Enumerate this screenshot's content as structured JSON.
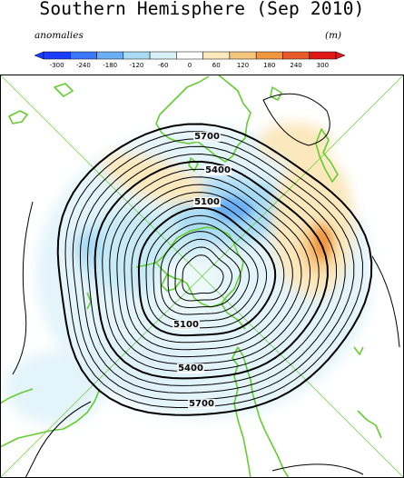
{
  "title": "Southern Hemisphere (Sep 2010)",
  "colorbar": {
    "left_label": "anomalies",
    "right_label": "(m)",
    "ticks": [
      "-300",
      "-240",
      "-180",
      "-120",
      "-60",
      "0",
      "60",
      "120",
      "180",
      "240",
      "300"
    ],
    "colors": [
      "#1a3cff",
      "#3a78ff",
      "#6aaef4",
      "#a9dcf4",
      "#d8f0f8",
      "#ffffff",
      "#fbe8bc",
      "#f6c67c",
      "#f0963e",
      "#e85a2a",
      "#e01818"
    ]
  },
  "map": {
    "projection": "polar stereographic, South Pole centered",
    "coastline_color": "#66cc33",
    "contour_labels": [
      "5700",
      "5400",
      "5100",
      "5100",
      "5400",
      "5700"
    ]
  }
}
